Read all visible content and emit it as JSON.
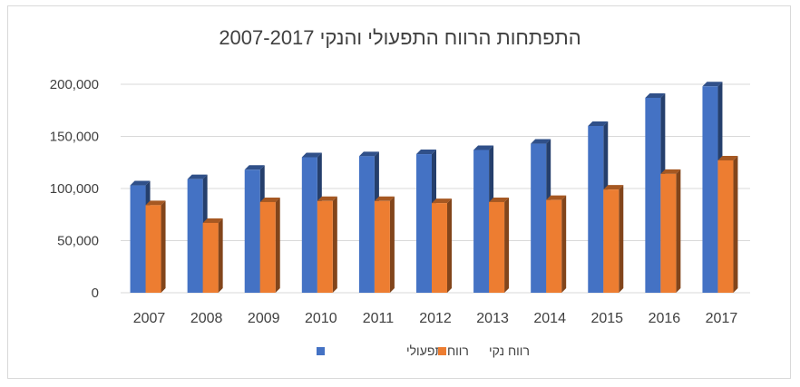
{
  "chart_data": {
    "type": "bar",
    "title": "התפתחות הרווח התפעולי והנקי 2007-2017",
    "xlabel": "",
    "ylabel": "",
    "ylim": [
      0,
      200000
    ],
    "yticks": [
      0,
      50000,
      100000,
      150000,
      200000
    ],
    "ytick_labels": [
      "0",
      "50,000",
      "100,000",
      "150,000",
      "200,000"
    ],
    "grid": true,
    "legend_position": "bottom",
    "categories": [
      "2007",
      "2008",
      "2009",
      "2010",
      "2011",
      "2012",
      "2013",
      "2014",
      "2015",
      "2016",
      "2017"
    ],
    "series": [
      {
        "name": "רווח תפעולי",
        "color": "#4472C4",
        "values": [
          103000,
          109000,
          118000,
          130000,
          131000,
          133000,
          137000,
          143000,
          160000,
          187000,
          198000
        ]
      },
      {
        "name": "רווח נקי",
        "color": "#ED7D31",
        "values": [
          84000,
          67000,
          87000,
          88000,
          88000,
          86000,
          87000,
          89000,
          99000,
          114000,
          127000
        ]
      }
    ]
  }
}
